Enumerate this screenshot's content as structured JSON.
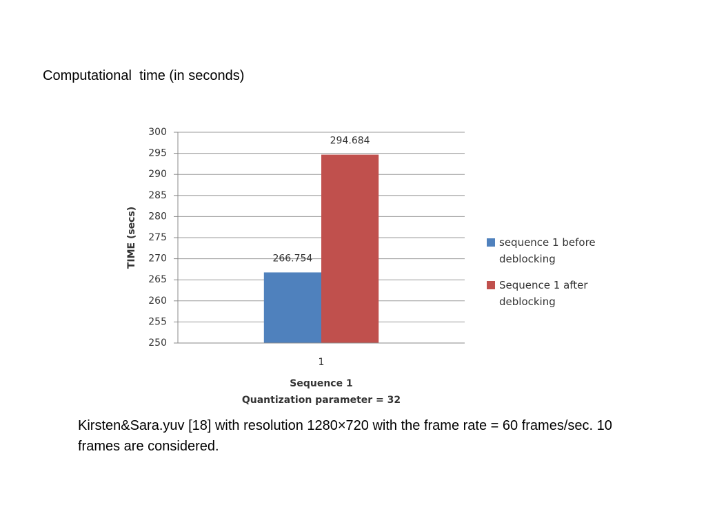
{
  "heading": "Computational  time (in seconds)",
  "caption": "Kirsten&Sara.yuv [18] with resolution 1280×720 with the frame rate = 60 frames/sec. 10 frames are considered.",
  "chart_data": {
    "type": "bar",
    "y_label": "TIME (secs)",
    "x_label": [
      "Sequence 1",
      "Quantization  parameter = 32"
    ],
    "categories": [
      "1"
    ],
    "series": [
      {
        "name": "sequence 1 before deblocking",
        "color": "#4f81bd",
        "values": [
          266.754
        ]
      },
      {
        "name": "Sequence 1 after deblocking",
        "color": "#c0504d",
        "values": [
          294.684
        ]
      }
    ],
    "ylim": [
      250,
      300
    ],
    "yticks": [
      250,
      255,
      260,
      265,
      270,
      275,
      280,
      285,
      290,
      295,
      300
    ],
    "grid": true,
    "legend": "right"
  }
}
